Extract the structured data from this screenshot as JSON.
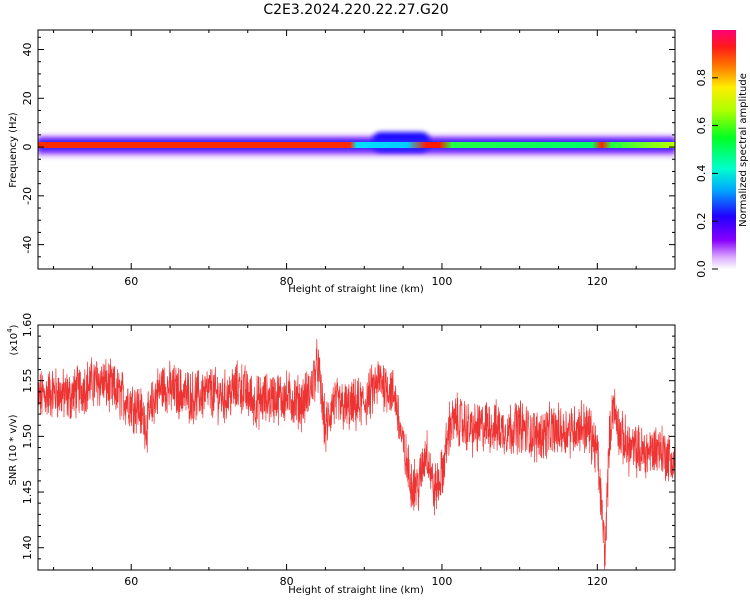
{
  "title": "C2E3.2024.220.22.27.G20",
  "chart_data": [
    {
      "type": "heatmap",
      "name": "spectrogram",
      "xlabel": "Height of straight line (km)",
      "ylabel": "Frequency (Hz)",
      "xlim": [
        48,
        130
      ],
      "ylim": [
        -50,
        48
      ],
      "x_ticks": [
        "60",
        "80",
        "100",
        "120"
      ],
      "x_tick_values": [
        60,
        80,
        100,
        120
      ],
      "y_ticks": [
        "40",
        "20",
        "0",
        "-20",
        "-40"
      ],
      "y_tick_values": [
        40,
        20,
        0,
        -20,
        -40
      ],
      "colorbar": {
        "label": "Normalized spectral amplitude",
        "ticks": [
          "0.0",
          "0.2",
          "0.4",
          "0.6",
          "0.8"
        ],
        "tick_values": [
          0.0,
          0.2,
          0.4,
          0.6,
          0.8
        ],
        "range": [
          0,
          1
        ],
        "colormap": "rainbow (violet-blue-cyan-green-yellow-red-magenta)"
      },
      "band": [
        {
          "x": [
            48,
            88
          ],
          "center": 1.5,
          "core": "red",
          "halo": "violet"
        },
        {
          "x": [
            88,
            97
          ],
          "center": 2.5,
          "core": "cyan-blue",
          "halo": "violet"
        },
        {
          "x": [
            97,
            100
          ],
          "center": 1.5,
          "core": "red",
          "halo": "blue"
        },
        {
          "x": [
            100,
            120
          ],
          "center": 0.5,
          "core": "green",
          "halo": "blue"
        },
        {
          "x": [
            120,
            122
          ],
          "center": 1.5,
          "core": "red",
          "halo": "violet"
        },
        {
          "x": [
            122,
            130
          ],
          "center": 1.5,
          "core": "green-yellow",
          "halo": "violet"
        }
      ]
    },
    {
      "type": "line",
      "name": "snr",
      "xlabel": "Height of straight line (km)",
      "ylabel": "SNR (10 * v/v)",
      "scale_label": "(x10",
      "scale_exp": "4",
      "xlim": [
        48,
        130
      ],
      "ylim": [
        1.38,
        1.6
      ],
      "x_ticks": [
        "60",
        "80",
        "100",
        "120"
      ],
      "x_tick_values": [
        60,
        80,
        100,
        120
      ],
      "y_ticks": [
        "1.60",
        "1.55",
        "1.50",
        "1.45",
        "1.40"
      ],
      "y_tick_values": [
        1.6,
        1.55,
        1.5,
        1.45,
        1.4
      ],
      "color": "#ee3333",
      "series": [
        {
          "x": [
            48,
            50,
            52,
            54,
            56,
            58,
            60,
            61,
            62,
            63,
            64,
            66,
            68,
            70,
            72,
            74,
            76,
            78,
            80,
            82,
            83,
            84,
            85,
            86,
            88,
            90,
            92,
            93,
            94,
            95,
            96,
            97,
            98,
            99,
            100,
            101,
            102,
            104,
            106,
            108,
            110,
            112,
            114,
            116,
            118,
            119,
            120,
            120.5,
            121,
            121.5,
            122,
            123,
            124,
            126,
            128,
            130
          ],
          "y": [
            1.535,
            1.54,
            1.535,
            1.545,
            1.55,
            1.54,
            1.53,
            1.525,
            1.51,
            1.535,
            1.545,
            1.54,
            1.535,
            1.54,
            1.535,
            1.545,
            1.53,
            1.535,
            1.535,
            1.53,
            1.54,
            1.565,
            1.505,
            1.53,
            1.525,
            1.53,
            1.55,
            1.545,
            1.535,
            1.49,
            1.46,
            1.455,
            1.49,
            1.45,
            1.465,
            1.51,
            1.515,
            1.505,
            1.51,
            1.505,
            1.51,
            1.5,
            1.505,
            1.505,
            1.51,
            1.505,
            1.485,
            1.44,
            1.395,
            1.49,
            1.53,
            1.5,
            1.49,
            1.485,
            1.49,
            1.475
          ]
        }
      ]
    }
  ]
}
